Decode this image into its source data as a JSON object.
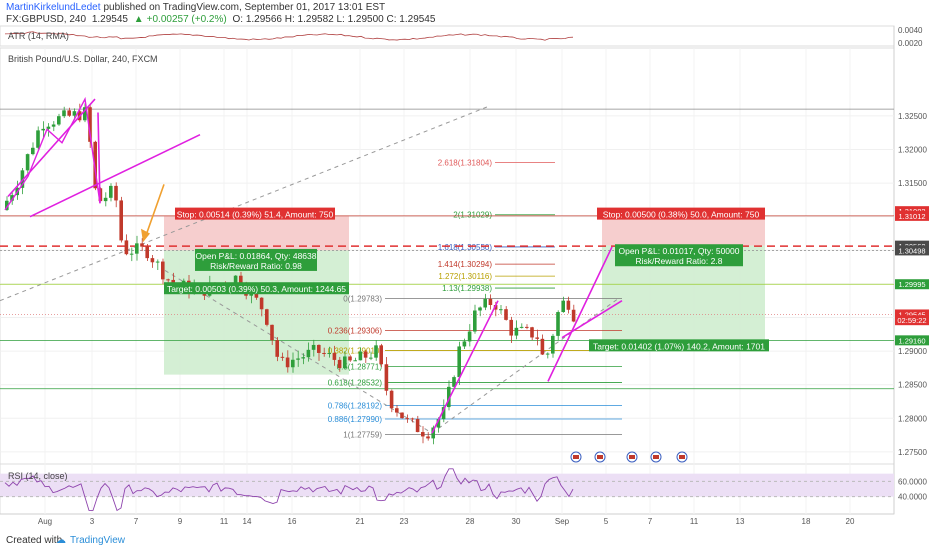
{
  "header": {
    "author": "MartinKirkelundLedet",
    "published": "published on TradingView.com, September 01, 2017 13:01 EST",
    "symbol": "FX:GBPUSD, 240",
    "last": "1.29545",
    "change": "+0.00257 (+0.2%)",
    "ohlc": "O: 1.29566  H: 1.29582  L: 1.29500  C: 1.29545"
  },
  "panes": {
    "atr_label": "ATR (14, RMA)",
    "main_label": "British Pound/U.S. Dollar, 240, FXCM",
    "rsi_label": "RSI (14, close)"
  },
  "footer": {
    "created_with": "Created with",
    "brand": "TradingView"
  },
  "colors": {
    "up": "#2e9e3b",
    "down": "#c0392b",
    "pattern": "#e020e0",
    "stop_zone": "#f4c6c6",
    "target_zone": "#cdeccc",
    "entry_line": "#e03131",
    "rsi_line": "#8e44ad",
    "rsi_band": "#ecdff5"
  },
  "chart_data": {
    "type": "candlestick",
    "ylim": [
      1.2735,
      1.3345
    ],
    "yticks": [
      "1.32500",
      "1.32000",
      "1.31500",
      "1.31000",
      "1.30500",
      "1.30000",
      "1.29500",
      "1.29000",
      "1.28500",
      "1.28000",
      "1.27500"
    ],
    "xticks": [
      "Aug",
      "3",
      "7",
      "9",
      "11",
      "14",
      "16",
      "21",
      "23",
      "28",
      "30",
      "Sep",
      "5",
      "7",
      "11",
      "13",
      "18",
      "20"
    ],
    "price_badges": [
      {
        "label": "1.31082",
        "color": "#e03131"
      },
      {
        "label": "1.31012",
        "color": "#e03131"
      },
      {
        "label": "1.30569",
        "color": "#4a4a4a"
      },
      {
        "label": "1.30562",
        "color": "#4a4a4a"
      },
      {
        "label": "1.30498",
        "color": "#4a4a4a"
      },
      {
        "label": "1.29995",
        "color": "#2e9e3b"
      },
      {
        "label": "1.29545",
        "color": "#e03131"
      },
      {
        "label": "02:59:22",
        "color": "#e03131"
      },
      {
        "label": "1.29160",
        "color": "#2e9e3b"
      }
    ],
    "fib_levels_upper": [
      {
        "label": "2.618(1.31804)",
        "value": 1.31804,
        "color": "#e05a5a"
      },
      {
        "label": "2(1.31029)",
        "value": 1.31029,
        "color": "#2e9e3b"
      },
      {
        "label": "1.618(1.30550)",
        "value": 1.3055,
        "color": "#3b5fc0"
      },
      {
        "label": "1.414(1.30294)",
        "value": 1.30294,
        "color": "#c0392b"
      },
      {
        "label": "1.272(1.30116)",
        "value": 1.30116,
        "color": "#b8a000"
      },
      {
        "label": "1.13(1.29938)",
        "value": 1.29938,
        "color": "#2e9e3b"
      }
    ],
    "fib_levels_lower": [
      {
        "label": "0(1.29783)",
        "value": 1.29783,
        "color": "#777777"
      },
      {
        "label": "0.236(1.29306)",
        "value": 1.29306,
        "color": "#c0392b"
      },
      {
        "label": "0.382(1.29010)",
        "value": 1.2901,
        "color": "#b8a000"
      },
      {
        "label": "0.5(1.28771)",
        "value": 1.28771,
        "color": "#2e9e3b"
      },
      {
        "label": "0.618(1.28532)",
        "value": 1.28532,
        "color": "#2e9e3b"
      },
      {
        "label": "0.786(1.28192)",
        "value": 1.28192,
        "color": "#2b8ed8"
      },
      {
        "label": "0.886(1.27990)",
        "value": 1.2799,
        "color": "#2b8ed8"
      },
      {
        "label": "1(1.27759)",
        "value": 1.27759,
        "color": "#777777"
      }
    ],
    "positions": [
      {
        "stop_label": "Stop: 0.00514 (0.39%) 51.4, Amount: 750",
        "open_label": "Open P&L: 0.01864, Qty: 48638",
        "rr_label": "Risk/Reward Ratio: 0.98",
        "target_label": "Target: 0.00503 (0.39%) 50.3, Amount: 1244.65"
      },
      {
        "stop_label": "Stop: 0.00500 (0.38%) 50.0, Amount: 750",
        "open_label": "Open P&L: 0.01017, Qty: 50000",
        "rr_label": "Risk/Reward Ratio: 2.8",
        "target_label": "Target: 0.01402 (1.07%) 140.2, Amount: 1701"
      }
    ],
    "atr": {
      "yticks": [
        "0.0040",
        "0.0020"
      ]
    },
    "rsi": {
      "yticks": [
        "60.0000",
        "40.0000"
      ],
      "band": [
        40,
        70
      ]
    }
  }
}
